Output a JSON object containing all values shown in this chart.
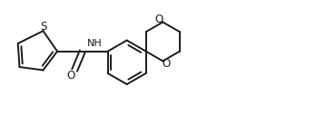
{
  "bg_color": "#ffffff",
  "line_color": "#1a1a1a",
  "line_width": 1.4,
  "fig_width": 3.48,
  "fig_height": 1.48,
  "dpi": 100,
  "xlim": [
    0.0,
    10.0
  ],
  "ylim": [
    0.0,
    4.2
  ]
}
